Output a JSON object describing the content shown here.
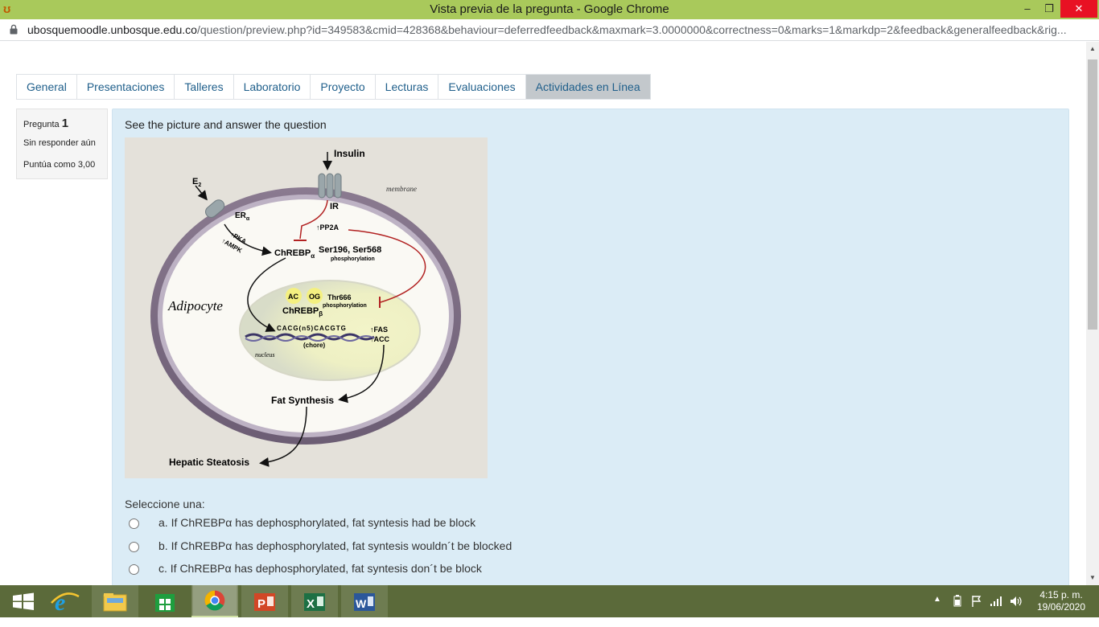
{
  "window": {
    "title": "Vista previa de la pregunta - Google Chrome",
    "minimize": "–",
    "restore": "❐",
    "close": "✕"
  },
  "address": {
    "host": "ubosquemoodle.unbosque.edu.co",
    "path": "/question/preview.php?id=349583&cmid=428368&behaviour=deferredfeedback&maxmark=3.0000000&correctness=0&marks=1&markdp=2&feedback&generalfeedback&rig..."
  },
  "tabs": [
    {
      "label": "General"
    },
    {
      "label": "Presentaciones"
    },
    {
      "label": "Talleres"
    },
    {
      "label": "Laboratorio"
    },
    {
      "label": "Proyecto"
    },
    {
      "label": "Lecturas"
    },
    {
      "label": "Evaluaciones"
    },
    {
      "label": "Actividades en Línea"
    }
  ],
  "question_info": {
    "label": "Pregunta",
    "number": "1",
    "state": "Sin responder aún",
    "grade": "Puntúa como 3,00"
  },
  "question": {
    "text": "See the picture and answer the question",
    "prompt": "Seleccione una:",
    "options": [
      {
        "text": "a. If ChREBPα has dephosphorylated, fat syntesis had be block"
      },
      {
        "text": "b. If ChREBPα has dephosphorylated, fat syntesis wouldn´t be blocked"
      },
      {
        "text": "c. If ChREBPα has dephosphorylated, fat syntesis don´t be block"
      }
    ]
  },
  "figure": {
    "insulin": "Insulin",
    "e2": "E",
    "e2_sub": "2",
    "ir": "IR",
    "membrane": "membrane",
    "er": "ER",
    "er_sub": "α",
    "pka": "PKA",
    "ampk": "AMPK",
    "pp2a": "PP2A",
    "chrebp_a": "ChREBP",
    "chrebp_a_sub": "α",
    "ser": "Ser196, Ser568",
    "ser_phos": "phosphorylation",
    "adipocyte": "Adipocyte",
    "ac": "AC",
    "og": "OG",
    "thr": "Thr666",
    "thr_phos": "phosphorylation",
    "chrebp_b": "ChREBP",
    "chrebp_b_sub": "β",
    "dna": "CACG(n5)CACGTG",
    "chore": "(chore)",
    "fas": "FAS",
    "acc": "ACC",
    "nucleus": "nucleus",
    "fat": "Fat Synthesis",
    "hepatic": "Hepatic Steatosis"
  },
  "clock": {
    "time": "4:15 p. m.",
    "date": "19/06/2020"
  },
  "colors": {
    "titlebar": "#a9c95b",
    "panel": "#dbecf6",
    "taskbar": "#5b6a3a",
    "link": "#1f5f8b"
  }
}
